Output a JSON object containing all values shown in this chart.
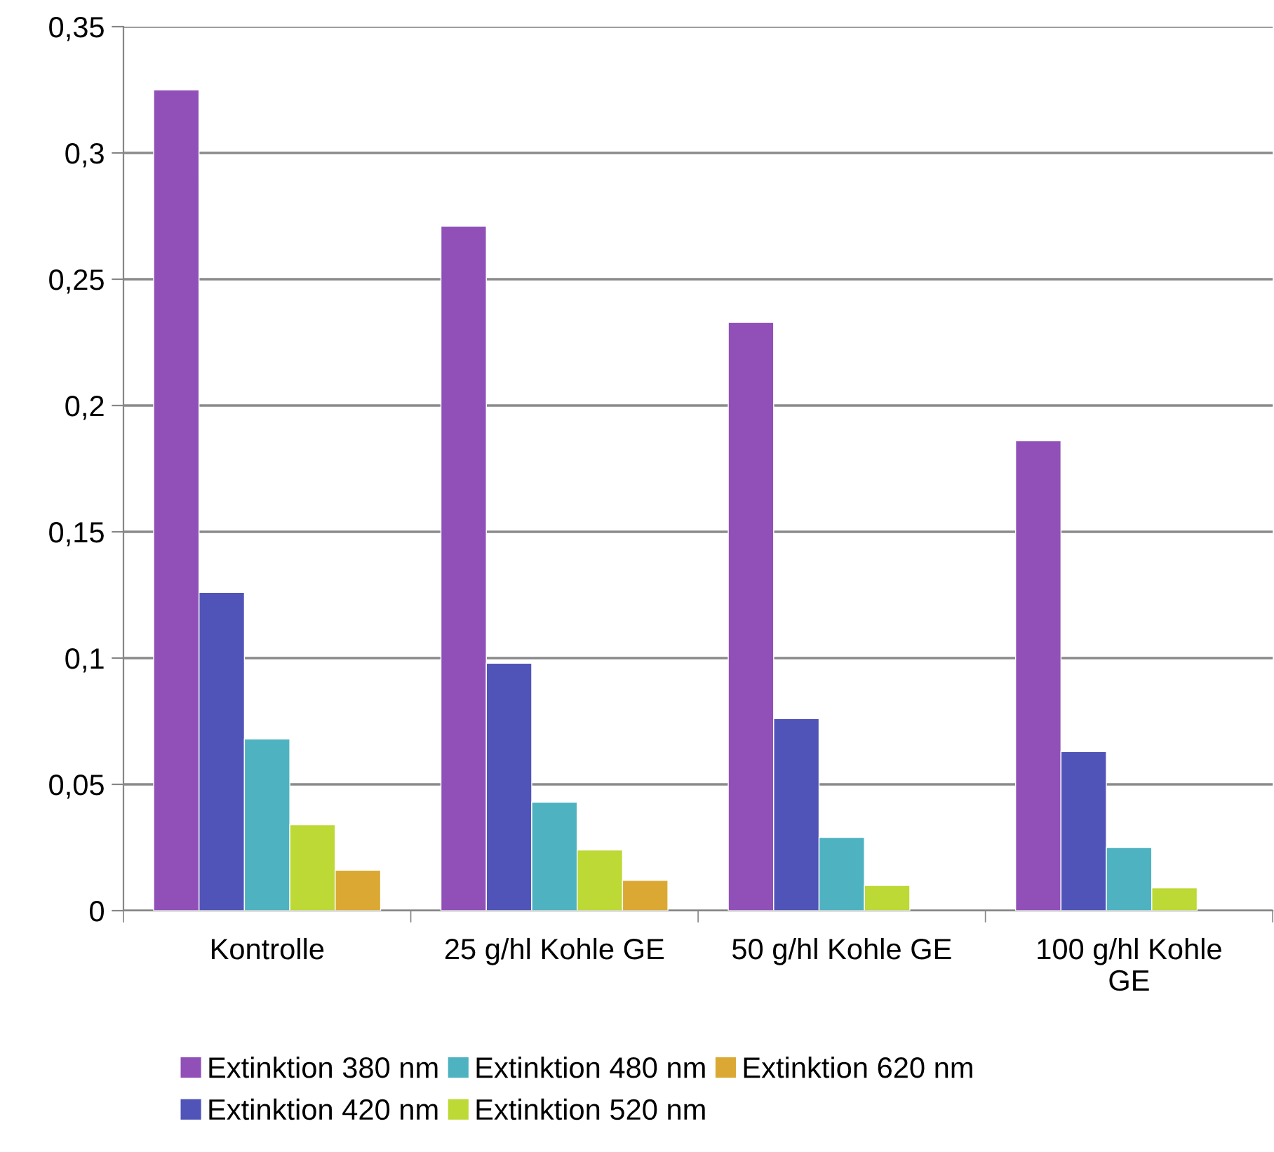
{
  "chart_data": {
    "type": "bar",
    "categories": [
      "Kontrolle",
      "25 g/hl Kohle GE",
      "50 g/hl Kohle GE",
      "100 g/hl Kohle\nGE"
    ],
    "series": [
      {
        "name": "Extinktion 380 nm",
        "color": "#9150b8",
        "values": [
          0.325,
          0.271,
          0.233,
          0.186
        ]
      },
      {
        "name": "Extinktion 420 nm",
        "color": "#5054b8",
        "values": [
          0.126,
          0.098,
          0.076,
          0.063
        ]
      },
      {
        "name": "Extinktion 480 nm",
        "color": "#4fb2c0",
        "values": [
          0.068,
          0.043,
          0.029,
          0.025
        ]
      },
      {
        "name": "Extinktion 520 nm",
        "color": "#bcd935",
        "values": [
          0.034,
          0.024,
          0.01,
          0.009
        ]
      },
      {
        "name": "Extinktion 620 nm",
        "color": "#dba933",
        "values": [
          0.016,
          0.012,
          null,
          null
        ]
      }
    ],
    "ylim": [
      0,
      0.35
    ],
    "yticks": [
      {
        "value": 0,
        "label": "0"
      },
      {
        "value": 0.05,
        "label": "0,05"
      },
      {
        "value": 0.1,
        "label": "0,1"
      },
      {
        "value": 0.15,
        "label": "0,15"
      },
      {
        "value": 0.2,
        "label": "0,2"
      },
      {
        "value": 0.25,
        "label": "0,25"
      },
      {
        "value": 0.3,
        "label": "0,3"
      },
      {
        "value": 0.35,
        "label": "0,35"
      }
    ],
    "grid": "y",
    "legend": "bottom"
  }
}
